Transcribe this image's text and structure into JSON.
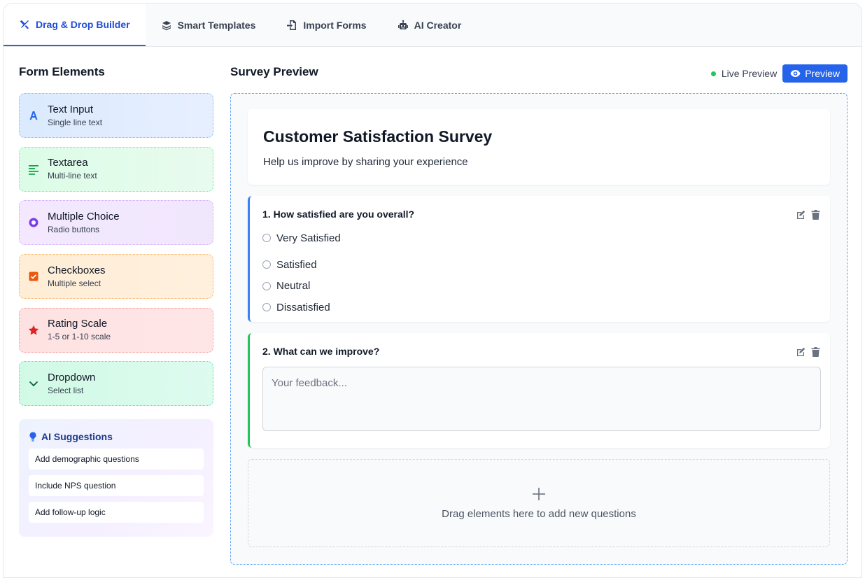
{
  "tabs": [
    {
      "label": "Drag & Drop Builder",
      "icon": "tools-icon"
    },
    {
      "label": "Smart Templates",
      "icon": "layers-icon"
    },
    {
      "label": "Import Forms",
      "icon": "file-import-icon"
    },
    {
      "label": "AI Creator",
      "icon": "robot-icon"
    }
  ],
  "sidebar": {
    "title": "Form Elements",
    "elements": [
      {
        "title": "Text Input",
        "subtitle": "Single line text",
        "icon": "font-icon",
        "color": "#2563eb"
      },
      {
        "title": "Textarea",
        "subtitle": "Multi-line text",
        "icon": "align-left-icon",
        "color": "#16a34a"
      },
      {
        "title": "Multiple Choice",
        "subtitle": "Radio buttons",
        "icon": "radio-icon",
        "color": "#7c3aed"
      },
      {
        "title": "Checkboxes",
        "subtitle": "Multiple select",
        "icon": "checkbox-icon",
        "color": "#ea580c"
      },
      {
        "title": "Rating Scale",
        "subtitle": "1-5 or 1-10 scale",
        "icon": "star-icon",
        "color": "#dc2626"
      },
      {
        "title": "Dropdown",
        "subtitle": "Select list",
        "icon": "chevron-down-icon",
        "color": "#059669"
      }
    ],
    "ai": {
      "title": "AI Suggestions",
      "items": [
        "Add demographic questions",
        "Include NPS question",
        "Add follow-up logic"
      ]
    }
  },
  "main": {
    "title": "Survey Preview",
    "live_label": "Live Preview",
    "preview_button": "Preview",
    "survey": {
      "title": "Customer Satisfaction Survey",
      "subtitle": "Help us improve by sharing your experience"
    },
    "questions": [
      {
        "title": "1. How satisfied are you overall?",
        "options": [
          "Very Satisfied",
          "Satisfied",
          "Neutral",
          "Dissatisfied"
        ]
      },
      {
        "title": "2. What can we improve?",
        "placeholder": "Your feedback..."
      }
    ],
    "dropzone_text": "Drag elements here to add new questions"
  }
}
